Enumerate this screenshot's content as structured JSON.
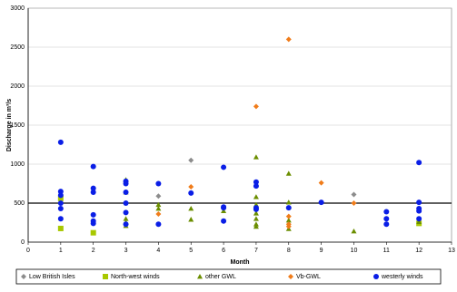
{
  "chart_data": {
    "type": "scatter",
    "y_label": "Discharge in m³/s",
    "x_label": "Month",
    "xlim": [
      0,
      13
    ],
    "xticks": [
      0,
      1,
      2,
      3,
      4,
      5,
      6,
      7,
      8,
      9,
      10,
      11,
      12,
      13
    ],
    "ylim": [
      0,
      3000
    ],
    "yticks": [
      0,
      500,
      1000,
      1500,
      2000,
      2500,
      3000
    ],
    "grid": true,
    "hline": 500,
    "legend": "bottom",
    "series": [
      {
        "name": "Low British Isles",
        "color": "#8c8c8c",
        "marker": "diamond",
        "x": [
          4,
          5,
          10
        ],
        "values": [
          590,
          1050,
          610
        ]
      },
      {
        "name": "North-west winds",
        "color": "#a8c800",
        "marker": "square",
        "x": [
          1,
          1,
          2,
          12
        ],
        "values": [
          175,
          560,
          120,
          240
        ]
      },
      {
        "name": "other GWL",
        "color": "#6b8e00",
        "marker": "triangle",
        "x": [
          3,
          3,
          3,
          3,
          3,
          4,
          4,
          5,
          5,
          6,
          7,
          7,
          7,
          7,
          7,
          7,
          7,
          8,
          8,
          8,
          8,
          10,
          12
        ],
        "values": [
          800,
          640,
          300,
          250,
          210,
          430,
          480,
          430,
          290,
          400,
          1090,
          580,
          480,
          370,
          300,
          230,
          200,
          880,
          510,
          280,
          170,
          140,
          260
        ]
      },
      {
        "name": "Vb-GWL",
        "color": "#f07c1a",
        "marker": "diamond",
        "x": [
          4,
          5,
          7,
          8,
          8,
          8,
          8,
          9,
          10
        ],
        "values": [
          360,
          710,
          1740,
          2600,
          330,
          230,
          200,
          760,
          500
        ]
      },
      {
        "name": "westerly winds",
        "color": "#0a1ee6",
        "marker": "circle",
        "x": [
          1,
          1,
          1,
          1,
          1,
          1,
          2,
          2,
          2,
          2,
          2,
          2,
          3,
          3,
          3,
          3,
          3,
          3,
          4,
          4,
          5,
          6,
          6,
          6,
          6,
          7,
          7,
          7,
          7,
          8,
          9,
          11,
          11,
          11,
          12,
          12,
          12,
          12,
          12
        ],
        "values": [
          1280,
          650,
          600,
          500,
          430,
          300,
          970,
          690,
          640,
          350,
          270,
          240,
          780,
          750,
          640,
          500,
          380,
          230,
          750,
          230,
          630,
          960,
          450,
          440,
          270,
          770,
          720,
          440,
          420,
          440,
          510,
          390,
          300,
          230,
          1020,
          510,
          430,
          400,
          300
        ]
      }
    ]
  }
}
